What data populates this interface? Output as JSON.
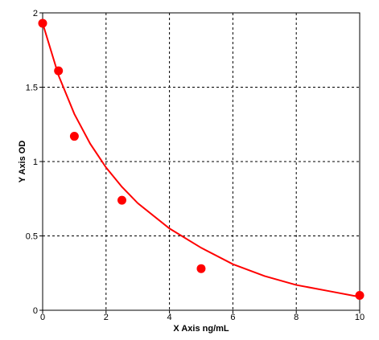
{
  "chart_data": {
    "type": "scatter",
    "title": "",
    "xlabel": "X Axis ng/mL",
    "ylabel": "Y Axis OD",
    "xlim": [
      0,
      10
    ],
    "ylim": [
      0,
      2
    ],
    "x_ticks": [
      0,
      2,
      4,
      6,
      8,
      10
    ],
    "y_ticks": [
      0,
      0.5,
      1,
      1.5,
      2
    ],
    "x_tick_labels": [
      "0",
      "2",
      "4",
      "6",
      "8",
      "10"
    ],
    "y_tick_labels": [
      "0",
      "0.5",
      "1",
      "1.5",
      "2"
    ],
    "grid": true,
    "grid_style": "dashed",
    "legend": "none",
    "series": [
      {
        "type": "scatter",
        "x": [
          0,
          0.5,
          1,
          2.5,
          5,
          10
        ],
        "y": [
          1.93,
          1.61,
          1.17,
          0.74,
          0.28,
          0.1
        ]
      },
      {
        "type": "line",
        "fit": "smooth decreasing curve",
        "x": [
          0,
          0.5,
          1,
          1.5,
          2,
          2.5,
          3,
          4,
          5,
          6,
          7,
          8,
          9,
          10
        ],
        "y": [
          1.93,
          1.58,
          1.32,
          1.12,
          0.96,
          0.83,
          0.72,
          0.55,
          0.42,
          0.31,
          0.23,
          0.17,
          0.13,
          0.09
        ]
      }
    ],
    "colors": {
      "series": "#ff0000",
      "grid": "#000000",
      "axes": "#000000"
    }
  }
}
